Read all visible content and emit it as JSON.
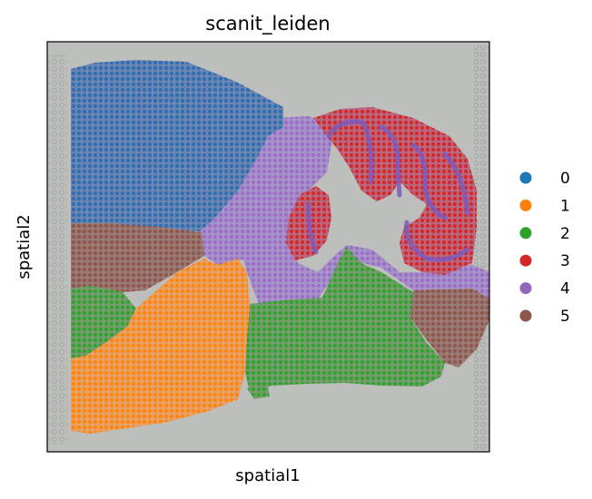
{
  "chart_data": {
    "type": "scatter",
    "title": "scanit_leiden",
    "xlabel": "spatial1",
    "ylabel": "spatial2",
    "grid": false,
    "ticks": "none",
    "legend_position": "right",
    "background": "H&E tissue image",
    "categories": [
      "0",
      "1",
      "2",
      "3",
      "4",
      "5"
    ],
    "colors": [
      "#1f77b4",
      "#ff7f0e",
      "#2ca02c",
      "#d62728",
      "#9467bd",
      "#8c564b"
    ]
  }
}
